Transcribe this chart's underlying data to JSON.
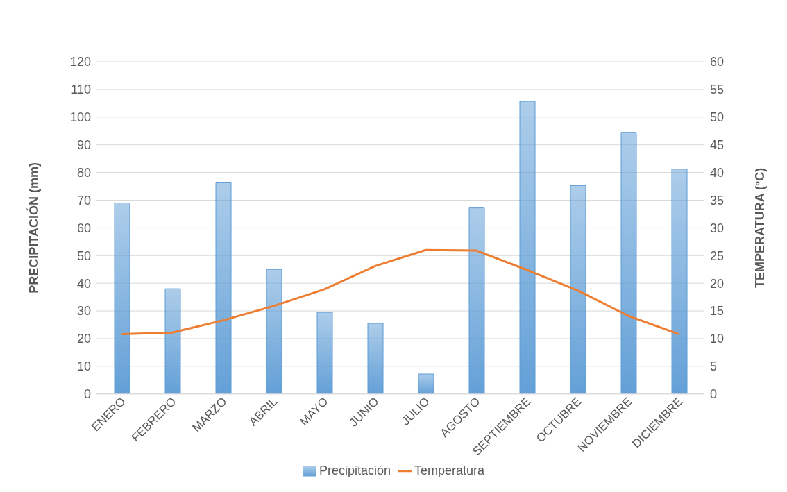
{
  "chart_data": {
    "type": "bar",
    "categories": [
      "ENERO",
      "FEBRERO",
      "MARZO",
      "ABRIL",
      "MAYO",
      "JUNIO",
      "JULIO",
      "AGOSTO",
      "SEPTIEMBRE",
      "OCTUBRE",
      "NOVIEMBRE",
      "DICIEMBRE"
    ],
    "series": [
      {
        "name": "Precipitación",
        "color": "#5b9bd5",
        "values": [
          69,
          38,
          76.5,
          45,
          29.5,
          25.5,
          7.2,
          67.2,
          105.7,
          75.3,
          94.5,
          81.2
        ]
      },
      {
        "name": "Temperatura",
        "type": "line",
        "axis": "y2",
        "color": "#ed7d31",
        "values": [
          10.8,
          11.1,
          13.3,
          15.9,
          18.9,
          23.1,
          26.0,
          25.9,
          22.4,
          18.7,
          14.1,
          10.8
        ]
      }
    ],
    "ylabel": "PRECIPITACIÓN (mm)",
    "y2label": "TEMPERATURA (°C)",
    "ylim": [
      0,
      120
    ],
    "yticks": [
      0,
      10,
      20,
      30,
      40,
      50,
      60,
      70,
      80,
      90,
      100,
      110,
      120
    ],
    "y2lim": [
      0,
      60
    ],
    "y2ticks": [
      0,
      5,
      10,
      15,
      20,
      25,
      30,
      35,
      40,
      45,
      50,
      55,
      60
    ],
    "grid": "y",
    "legend": "bottom",
    "marker": "none",
    "line_style": "solid"
  }
}
